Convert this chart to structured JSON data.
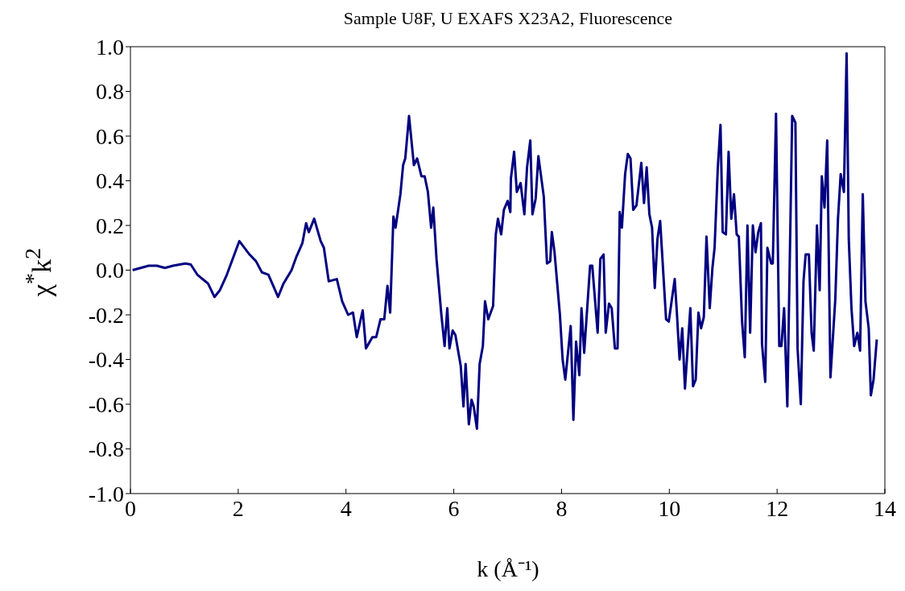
{
  "chart_data": {
    "type": "line",
    "title": "Sample U8F, U EXAFS X23A2, Fluorescence",
    "xlabel": "k (Å⁻¹)",
    "ylabel": "χ$^{*}$k$^{2}$",
    "xlim": [
      0,
      14
    ],
    "xticks": [
      0,
      2,
      4,
      6,
      8,
      10,
      12,
      14
    ],
    "ylim": [
      -1,
      1
    ],
    "yticks": [
      {
        "value": -1,
        "label": "-1.0"
      },
      -0.8,
      -0.6,
      -0.4,
      -0.2,
      {
        "value": 0,
        "label": "0.0"
      },
      0.2,
      0.4,
      0.6,
      0.8,
      {
        "value": 1,
        "label": "1.0"
      }
    ],
    "grid": false,
    "legend": false,
    "marker": "none",
    "line_style": "solid",
    "series": [
      {
        "color": "#000080",
        "x": [
          0.04,
          0.19,
          0.34,
          0.49,
          0.64,
          0.79,
          1.02,
          1.12,
          1.24,
          1.44,
          1.56,
          1.66,
          1.79,
          2.02,
          2.21,
          2.33,
          2.44,
          2.56,
          2.74,
          2.84,
          2.99,
          3.08,
          3.19,
          3.26,
          3.31,
          3.41,
          3.53,
          3.59,
          3.68,
          3.83,
          3.93,
          4.04,
          4.13,
          4.2,
          4.31,
          4.37,
          4.49,
          4.56,
          4.64,
          4.71,
          4.77,
          4.82,
          4.88,
          4.92,
          5.01,
          5.06,
          5.1,
          5.17,
          5.26,
          5.32,
          5.4,
          5.46,
          5.52,
          5.58,
          5.62,
          5.68,
          5.77,
          5.83,
          5.88,
          5.92,
          5.98,
          6.03,
          6.13,
          6.18,
          6.22,
          6.28,
          6.33,
          6.37,
          6.43,
          6.48,
          6.54,
          6.58,
          6.64,
          6.73,
          6.78,
          6.82,
          6.88,
          6.93,
          7.0,
          7.05,
          7.06,
          7.12,
          7.17,
          7.24,
          7.31,
          7.36,
          7.42,
          7.46,
          7.52,
          7.57,
          7.67,
          7.73,
          7.79,
          7.82,
          7.87,
          7.97,
          8.02,
          8.07,
          8.17,
          8.22,
          8.27,
          8.33,
          8.37,
          8.42,
          8.53,
          8.57,
          8.67,
          8.72,
          8.78,
          8.82,
          8.88,
          8.93,
          8.99,
          9.04,
          9.08,
          9.12,
          9.18,
          9.23,
          9.28,
          9.33,
          9.39,
          9.48,
          9.53,
          9.58,
          9.63,
          9.68,
          9.73,
          9.78,
          9.83,
          9.94,
          9.99,
          10.1,
          10.14,
          10.19,
          10.24,
          10.29,
          10.39,
          10.44,
          10.49,
          10.54,
          10.59,
          10.64,
          10.69,
          10.75,
          10.8,
          10.84,
          10.9,
          10.95,
          10.99,
          11.05,
          11.1,
          11.15,
          11.2,
          11.25,
          11.29,
          11.35,
          11.4,
          11.45,
          11.5,
          11.55,
          11.6,
          11.65,
          11.7,
          11.72,
          11.78,
          11.82,
          11.89,
          11.92,
          11.98,
          12.04,
          12.08,
          12.13,
          12.19,
          12.28,
          12.34,
          12.38,
          12.44,
          12.49,
          12.53,
          12.59,
          12.64,
          12.68,
          12.74,
          12.79,
          12.83,
          12.88,
          12.93,
          12.99,
          13.08,
          13.13,
          13.18,
          13.24,
          13.29,
          13.33,
          13.38,
          13.43,
          13.49,
          13.54,
          13.59,
          13.64,
          13.7,
          13.74,
          13.79,
          13.85
        ],
        "values": [
          0,
          0.01,
          0.02,
          0.02,
          0.01,
          0.02,
          0.03,
          0.025,
          -0.02,
          -0.06,
          -0.12,
          -0.09,
          -0.02,
          0.13,
          0.07,
          0.04,
          -0.01,
          -0.02,
          -0.12,
          -0.06,
          0,
          0.06,
          0.12,
          0.21,
          0.17,
          0.23,
          0.13,
          0.1,
          -0.05,
          -0.04,
          -0.14,
          -0.2,
          -0.19,
          -0.3,
          -0.18,
          -0.35,
          -0.3,
          -0.3,
          -0.22,
          -0.22,
          -0.07,
          -0.19,
          0.24,
          0.19,
          0.34,
          0.47,
          0.5,
          0.69,
          0.47,
          0.5,
          0.42,
          0.42,
          0.35,
          0.19,
          0.28,
          0.05,
          -0.2,
          -0.34,
          -0.17,
          -0.35,
          -0.27,
          -0.29,
          -0.43,
          -0.61,
          -0.42,
          -0.69,
          -0.58,
          -0.61,
          -0.71,
          -0.42,
          -0.34,
          -0.14,
          -0.22,
          -0.16,
          0.16,
          0.23,
          0.16,
          0.27,
          0.31,
          0.26,
          0.41,
          0.53,
          0.35,
          0.39,
          0.25,
          0.46,
          0.58,
          0.25,
          0.32,
          0.51,
          0.33,
          0.03,
          0.04,
          0.17,
          0.08,
          -0.2,
          -0.4,
          -0.49,
          -0.25,
          -0.67,
          -0.32,
          -0.47,
          -0.17,
          -0.37,
          0.02,
          0.02,
          -0.28,
          0.05,
          0.07,
          -0.28,
          -0.15,
          -0.17,
          -0.35,
          -0.35,
          0.26,
          0.19,
          0.43,
          0.52,
          0.5,
          0.27,
          0.29,
          0.48,
          0.3,
          0.46,
          0.25,
          0.19,
          -0.08,
          0.14,
          0.22,
          -0.22,
          -0.23,
          -0.04,
          -0.19,
          -0.4,
          -0.26,
          -0.53,
          -0.17,
          -0.52,
          -0.49,
          -0.19,
          -0.26,
          -0.21,
          0.15,
          -0.17,
          0.01,
          0.1,
          0.46,
          0.65,
          0.17,
          0.16,
          0.53,
          0.23,
          0.34,
          0.16,
          0.15,
          -0.23,
          -0.39,
          0.2,
          -0.28,
          0.2,
          0.08,
          0.17,
          0.21,
          -0.33,
          -0.5,
          0.1,
          0.03,
          0.03,
          0.7,
          -0.34,
          -0.34,
          -0.17,
          -0.61,
          0.69,
          0.66,
          -0.35,
          -0.6,
          -0.05,
          0.07,
          0.07,
          -0.28,
          -0.36,
          0.2,
          -0.09,
          0.42,
          0.28,
          0.58,
          -0.48,
          -0.13,
          0.23,
          0.43,
          0.35,
          0.97,
          0.14,
          -0.17,
          -0.34,
          -0.28,
          -0.36,
          0.34,
          -0.14,
          -0.26,
          -0.56,
          -0.49,
          -0.31
        ]
      }
    ]
  }
}
